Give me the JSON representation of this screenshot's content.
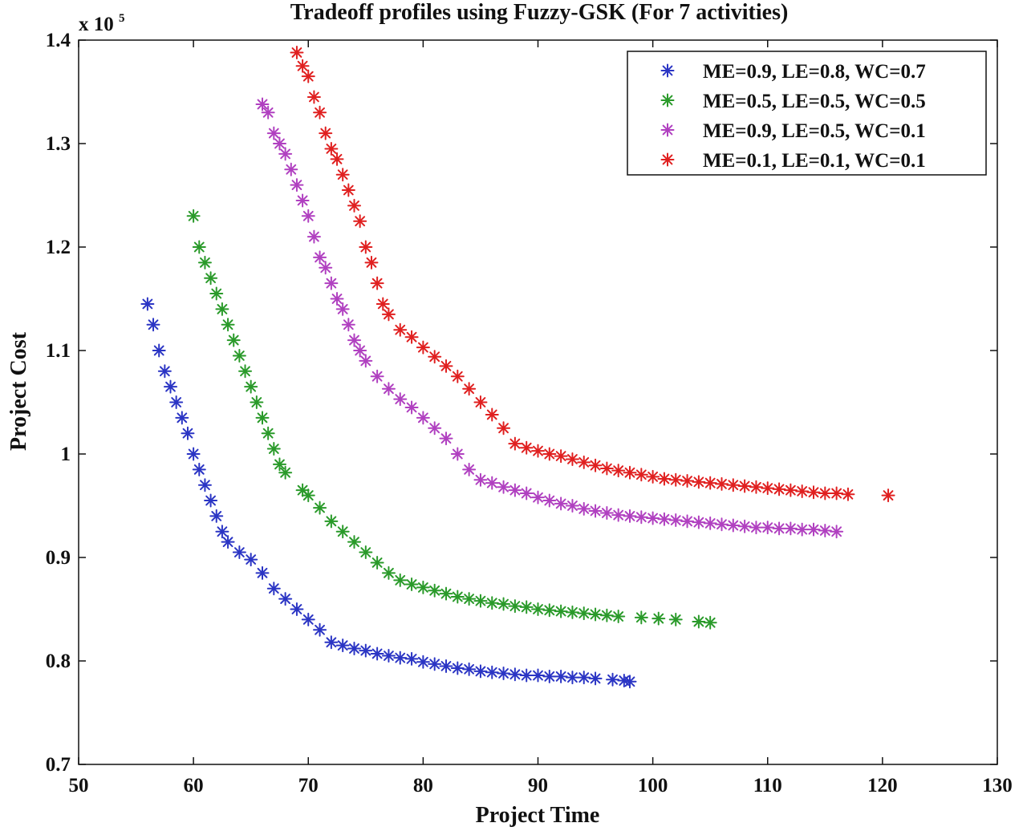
{
  "chart_data": {
    "type": "scatter",
    "title": "Tradeoff profiles using Fuzzy-GSK (For 7 activities)",
    "xlabel": "Project Time",
    "ylabel": "Project Cost",
    "y_multiplier_label": "x 10",
    "y_multiplier_exp": "5",
    "xlim": [
      50,
      130
    ],
    "ylim": [
      0.7,
      1.4
    ],
    "xticks": [
      "50",
      "60",
      "70",
      "80",
      "90",
      "100",
      "110",
      "120",
      "130"
    ],
    "yticks": [
      "0.7",
      "0.8",
      "0.9",
      "1",
      "1.1",
      "1.2",
      "1.3",
      "1.4"
    ],
    "marker": "*",
    "legend_position": "top-right",
    "series": [
      {
        "name": "ME=0.9, LE=0.8, WC=0.7",
        "color": "#2b35c4",
        "points": [
          [
            56,
            1.145
          ],
          [
            56.5,
            1.125
          ],
          [
            57,
            1.1
          ],
          [
            57.5,
            1.08
          ],
          [
            58,
            1.065
          ],
          [
            58.5,
            1.05
          ],
          [
            59,
            1.035
          ],
          [
            59.5,
            1.02
          ],
          [
            60,
            1.0
          ],
          [
            60.5,
            0.985
          ],
          [
            61,
            0.97
          ],
          [
            61.5,
            0.955
          ],
          [
            62,
            0.94
          ],
          [
            62.5,
            0.925
          ],
          [
            63,
            0.915
          ],
          [
            64,
            0.905
          ],
          [
            65,
            0.898
          ],
          [
            66,
            0.885
          ],
          [
            67,
            0.87
          ],
          [
            68,
            0.86
          ],
          [
            69,
            0.85
          ],
          [
            70,
            0.84
          ],
          [
            71,
            0.83
          ],
          [
            72,
            0.818
          ],
          [
            73,
            0.815
          ],
          [
            74,
            0.812
          ],
          [
            75,
            0.81
          ],
          [
            76,
            0.807
          ],
          [
            77,
            0.805
          ],
          [
            78,
            0.803
          ],
          [
            79,
            0.802
          ],
          [
            80,
            0.799
          ],
          [
            81,
            0.797
          ],
          [
            82,
            0.795
          ],
          [
            83,
            0.793
          ],
          [
            84,
            0.792
          ],
          [
            85,
            0.79
          ],
          [
            86,
            0.789
          ],
          [
            87,
            0.788
          ],
          [
            88,
            0.787
          ],
          [
            89,
            0.786
          ],
          [
            90,
            0.786
          ],
          [
            91,
            0.785
          ],
          [
            92,
            0.785
          ],
          [
            93,
            0.784
          ],
          [
            94,
            0.784
          ],
          [
            95,
            0.783
          ],
          [
            96.5,
            0.782
          ],
          [
            97.5,
            0.781
          ],
          [
            98,
            0.78
          ]
        ]
      },
      {
        "name": "ME=0.5, LE=0.5, WC=0.5",
        "color": "#2a9a2a",
        "points": [
          [
            60,
            1.23
          ],
          [
            60.5,
            1.2
          ],
          [
            61,
            1.185
          ],
          [
            61.5,
            1.17
          ],
          [
            62,
            1.155
          ],
          [
            62.5,
            1.14
          ],
          [
            63,
            1.125
          ],
          [
            63.5,
            1.11
          ],
          [
            64,
            1.095
          ],
          [
            64.5,
            1.08
          ],
          [
            65,
            1.065
          ],
          [
            65.5,
            1.05
          ],
          [
            66,
            1.035
          ],
          [
            66.5,
            1.02
          ],
          [
            67,
            1.005
          ],
          [
            67.5,
            0.99
          ],
          [
            68,
            0.982
          ],
          [
            69.5,
            0.965
          ],
          [
            70,
            0.96
          ],
          [
            71,
            0.948
          ],
          [
            72,
            0.935
          ],
          [
            73,
            0.925
          ],
          [
            74,
            0.915
          ],
          [
            75,
            0.905
          ],
          [
            76,
            0.895
          ],
          [
            77,
            0.885
          ],
          [
            78,
            0.878
          ],
          [
            79,
            0.874
          ],
          [
            80,
            0.871
          ],
          [
            81,
            0.868
          ],
          [
            82,
            0.865
          ],
          [
            83,
            0.862
          ],
          [
            84,
            0.86
          ],
          [
            85,
            0.858
          ],
          [
            86,
            0.856
          ],
          [
            87,
            0.855
          ],
          [
            88,
            0.853
          ],
          [
            89,
            0.852
          ],
          [
            90,
            0.85
          ],
          [
            91,
            0.849
          ],
          [
            92,
            0.848
          ],
          [
            93,
            0.847
          ],
          [
            94,
            0.846
          ],
          [
            95,
            0.845
          ],
          [
            96,
            0.844
          ],
          [
            97,
            0.843
          ],
          [
            99,
            0.842
          ],
          [
            100.5,
            0.841
          ],
          [
            102,
            0.84
          ],
          [
            104,
            0.838
          ],
          [
            105,
            0.837
          ]
        ]
      },
      {
        "name": "ME=0.9, LE=0.5, WC=0.1",
        "color": "#b040c0",
        "points": [
          [
            66,
            1.338
          ],
          [
            66.5,
            1.33
          ],
          [
            67,
            1.31
          ],
          [
            67.5,
            1.3
          ],
          [
            68,
            1.29
          ],
          [
            68.5,
            1.275
          ],
          [
            69,
            1.26
          ],
          [
            69.5,
            1.245
          ],
          [
            70,
            1.23
          ],
          [
            70.5,
            1.21
          ],
          [
            71,
            1.19
          ],
          [
            71.5,
            1.18
          ],
          [
            72,
            1.165
          ],
          [
            72.5,
            1.15
          ],
          [
            73,
            1.14
          ],
          [
            73.5,
            1.125
          ],
          [
            74,
            1.11
          ],
          [
            74.5,
            1.1
          ],
          [
            75,
            1.09
          ],
          [
            76,
            1.075
          ],
          [
            77,
            1.063
          ],
          [
            78,
            1.053
          ],
          [
            79,
            1.045
          ],
          [
            80,
            1.035
          ],
          [
            81,
            1.025
          ],
          [
            82,
            1.015
          ],
          [
            83,
            1.0
          ],
          [
            84,
            0.985
          ],
          [
            85,
            0.975
          ],
          [
            86,
            0.972
          ],
          [
            87,
            0.968
          ],
          [
            88,
            0.965
          ],
          [
            89,
            0.962
          ],
          [
            90,
            0.958
          ],
          [
            91,
            0.955
          ],
          [
            92,
            0.952
          ],
          [
            93,
            0.95
          ],
          [
            94,
            0.947
          ],
          [
            95,
            0.945
          ],
          [
            96,
            0.943
          ],
          [
            97,
            0.941
          ],
          [
            98,
            0.94
          ],
          [
            99,
            0.939
          ],
          [
            100,
            0.938
          ],
          [
            101,
            0.937
          ],
          [
            102,
            0.936
          ],
          [
            103,
            0.935
          ],
          [
            104,
            0.934
          ],
          [
            105,
            0.933
          ],
          [
            106,
            0.932
          ],
          [
            107,
            0.931
          ],
          [
            108,
            0.93
          ],
          [
            109,
            0.929
          ],
          [
            110,
            0.929
          ],
          [
            111,
            0.928
          ],
          [
            112,
            0.928
          ],
          [
            113,
            0.927
          ],
          [
            114,
            0.927
          ],
          [
            115,
            0.926
          ],
          [
            116,
            0.925
          ]
        ]
      },
      {
        "name": "ME=0.1, LE=0.1, WC=0.1",
        "color": "#e02020",
        "points": [
          [
            69,
            1.388
          ],
          [
            69.5,
            1.375
          ],
          [
            70,
            1.365
          ],
          [
            70.5,
            1.345
          ],
          [
            71,
            1.33
          ],
          [
            71.5,
            1.31
          ],
          [
            72,
            1.295
          ],
          [
            72.5,
            1.285
          ],
          [
            73,
            1.27
          ],
          [
            73.5,
            1.255
          ],
          [
            74,
            1.24
          ],
          [
            74.5,
            1.225
          ],
          [
            75,
            1.2
          ],
          [
            75.5,
            1.185
          ],
          [
            76,
            1.165
          ],
          [
            76.5,
            1.145
          ],
          [
            77,
            1.135
          ],
          [
            78,
            1.12
          ],
          [
            79,
            1.113
          ],
          [
            80,
            1.103
          ],
          [
            81,
            1.094
          ],
          [
            82,
            1.085
          ],
          [
            83,
            1.075
          ],
          [
            84,
            1.063
          ],
          [
            85,
            1.05
          ],
          [
            86,
            1.038
          ],
          [
            87,
            1.025
          ],
          [
            88,
            1.01
          ],
          [
            89,
            1.006
          ],
          [
            90,
            1.003
          ],
          [
            91,
            1.0
          ],
          [
            92,
            0.998
          ],
          [
            93,
            0.995
          ],
          [
            94,
            0.992
          ],
          [
            95,
            0.989
          ],
          [
            96,
            0.986
          ],
          [
            97,
            0.984
          ],
          [
            98,
            0.982
          ],
          [
            99,
            0.98
          ],
          [
            100,
            0.978
          ],
          [
            101,
            0.976
          ],
          [
            102,
            0.975
          ],
          [
            103,
            0.974
          ],
          [
            104,
            0.973
          ],
          [
            105,
            0.972
          ],
          [
            106,
            0.971
          ],
          [
            107,
            0.97
          ],
          [
            108,
            0.969
          ],
          [
            109,
            0.968
          ],
          [
            110,
            0.967
          ],
          [
            111,
            0.966
          ],
          [
            112,
            0.965
          ],
          [
            113,
            0.964
          ],
          [
            114,
            0.963
          ],
          [
            115,
            0.962
          ],
          [
            116,
            0.962
          ],
          [
            117,
            0.961
          ],
          [
            120.5,
            0.96
          ]
        ]
      }
    ]
  }
}
